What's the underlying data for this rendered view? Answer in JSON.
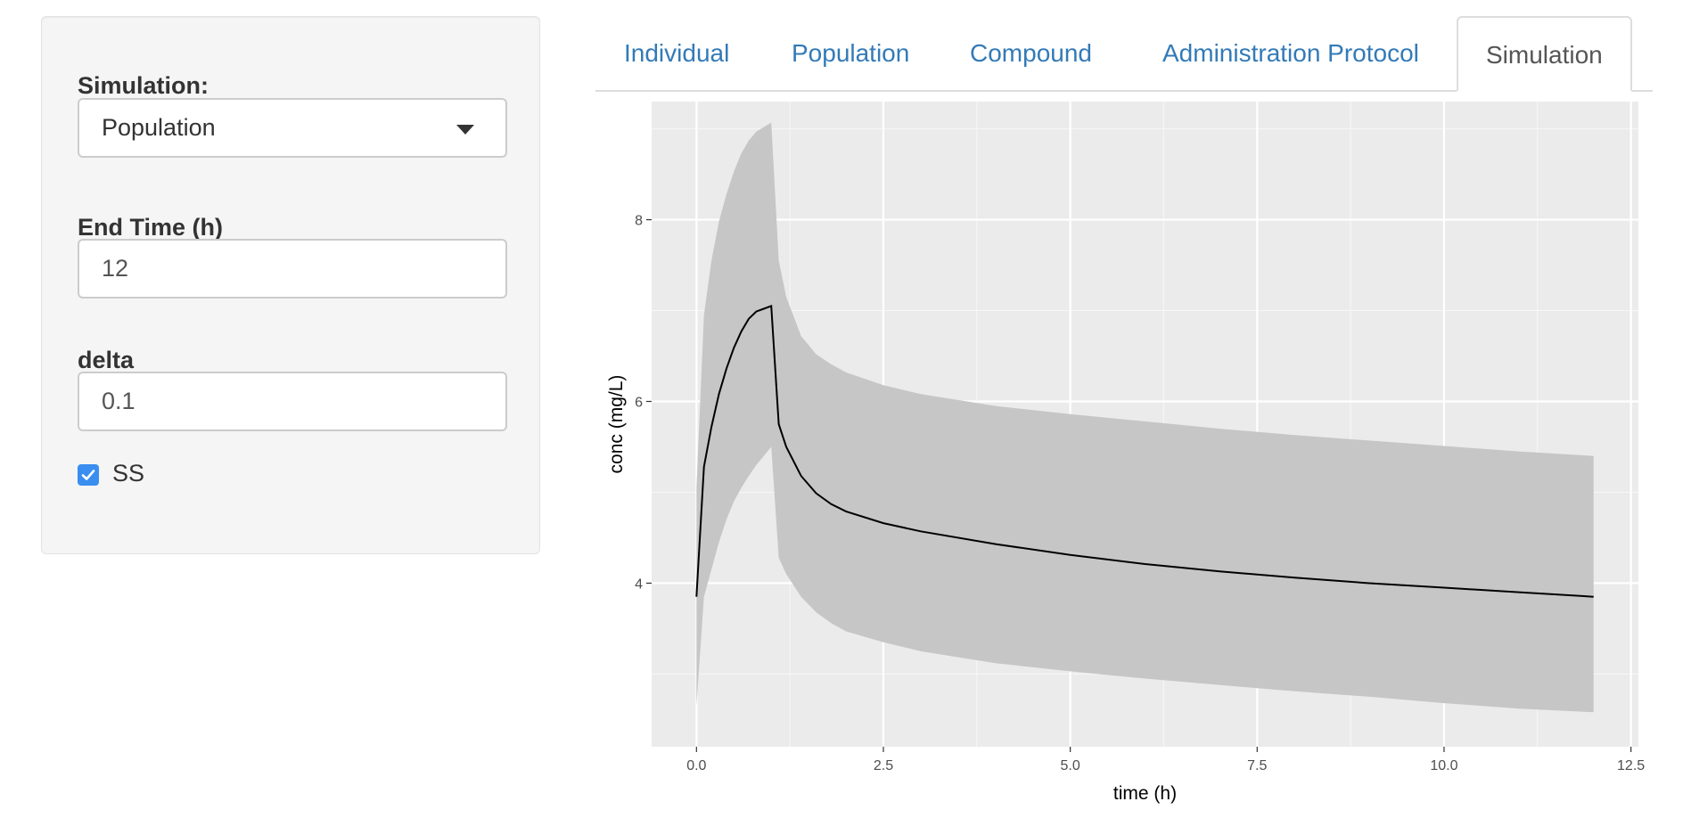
{
  "sidebar": {
    "simulation_label": "Simulation:",
    "simulation_value": "Population",
    "end_time_label": "End Time (h)",
    "end_time_value": "12",
    "delta_label": "delta",
    "delta_value": "0.1",
    "ss_label": "SS",
    "ss_checked": true
  },
  "tabs": [
    {
      "label": "Individual",
      "active": false
    },
    {
      "label": "Population",
      "active": false
    },
    {
      "label": "Compound",
      "active": false
    },
    {
      "label": "Administration Protocol",
      "active": false
    },
    {
      "label": "Simulation",
      "active": true
    }
  ],
  "colors": {
    "link": "#337ab7",
    "panel_bg": "#ebebeb",
    "ribbon": "#c6c6c6",
    "checkbox": "#3a8ef0"
  },
  "chart_data": {
    "type": "line",
    "xlabel": "time (h)",
    "ylabel": "conc (mg/L)",
    "xlim": [
      -0.6,
      12.6
    ],
    "ylim": [
      2.2,
      9.3
    ],
    "x_ticks": [
      0.0,
      2.5,
      5.0,
      7.5,
      10.0,
      12.5
    ],
    "x_tick_labels": [
      "0.0",
      "2.5",
      "5.0",
      "7.5",
      "10.0",
      "12.5"
    ],
    "y_ticks": [
      4,
      6,
      8
    ],
    "y_tick_labels": [
      "4",
      "6",
      "8"
    ],
    "grid": true,
    "series": [
      {
        "style": "line",
        "color": "#000000",
        "x": [
          0,
          0.1,
          0.2,
          0.3,
          0.4,
          0.5,
          0.6,
          0.7,
          0.8,
          0.9,
          1.0,
          1.1,
          1.2,
          1.4,
          1.6,
          1.8,
          2.0,
          2.5,
          3.0,
          4.0,
          5.0,
          6.0,
          7.0,
          8.0,
          9.0,
          10.0,
          11.0,
          12.0
        ],
        "y": [
          3.85,
          5.28,
          5.72,
          6.08,
          6.36,
          6.59,
          6.77,
          6.91,
          6.99,
          7.02,
          7.05,
          5.75,
          5.5,
          5.18,
          4.99,
          4.87,
          4.79,
          4.66,
          4.57,
          4.43,
          4.31,
          4.21,
          4.13,
          4.06,
          4.0,
          3.95,
          3.9,
          3.85
        ]
      },
      {
        "style": "ribbon",
        "color": "#c6c6c6",
        "x": [
          0,
          0.1,
          0.2,
          0.3,
          0.4,
          0.5,
          0.6,
          0.7,
          0.8,
          0.9,
          1.0,
          1.1,
          1.2,
          1.4,
          1.6,
          1.8,
          2.0,
          2.5,
          3.0,
          4.0,
          5.0,
          6.0,
          7.0,
          8.0,
          9.0,
          10.0,
          11.0,
          12.0
        ],
        "lower": [
          2.65,
          3.85,
          4.15,
          4.45,
          4.7,
          4.9,
          5.05,
          5.18,
          5.3,
          5.4,
          5.5,
          4.28,
          4.1,
          3.85,
          3.68,
          3.56,
          3.47,
          3.35,
          3.25,
          3.12,
          3.03,
          2.95,
          2.88,
          2.81,
          2.75,
          2.68,
          2.62,
          2.58
        ],
        "upper": [
          5.05,
          6.95,
          7.55,
          7.98,
          8.28,
          8.53,
          8.73,
          8.87,
          8.97,
          9.02,
          9.07,
          7.55,
          7.15,
          6.72,
          6.52,
          6.41,
          6.32,
          6.18,
          6.08,
          5.95,
          5.86,
          5.78,
          5.7,
          5.63,
          5.57,
          5.51,
          5.45,
          5.4
        ]
      }
    ]
  }
}
